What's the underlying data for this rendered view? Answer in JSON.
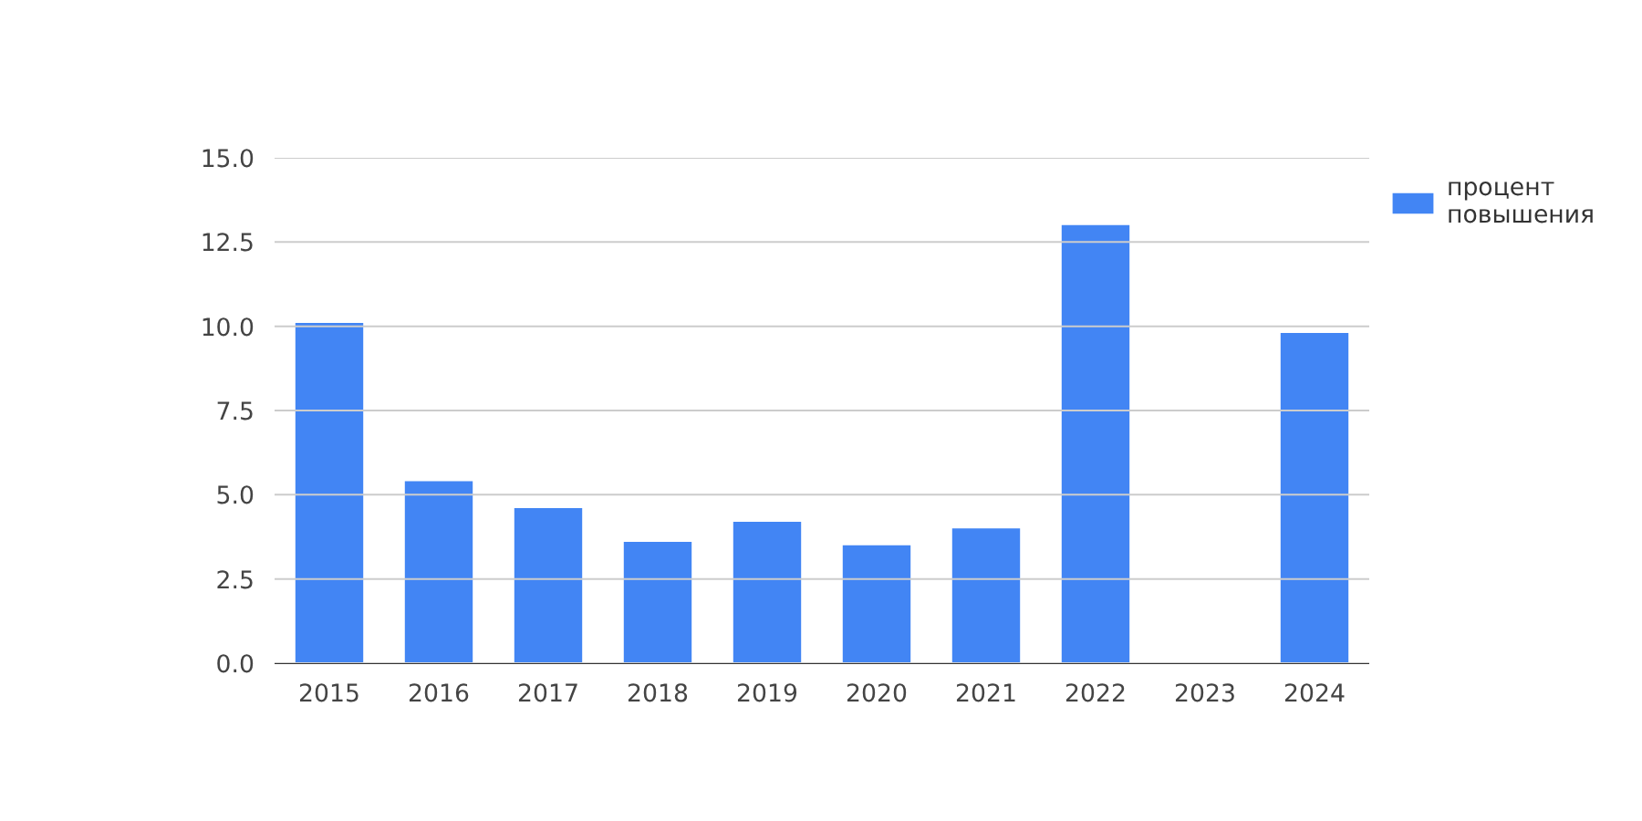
{
  "chart_data": {
    "type": "bar",
    "categories": [
      "2015",
      "2016",
      "2017",
      "2018",
      "2019",
      "2020",
      "2021",
      "2022",
      "2023",
      "2024"
    ],
    "series": [
      {
        "name": "процент повышения",
        "color": "#4285f4",
        "values": [
          10.1,
          5.4,
          4.6,
          3.6,
          4.2,
          3.5,
          4.0,
          13.0,
          null,
          9.8
        ]
      }
    ],
    "ylim": [
      0,
      15
    ],
    "yticks": [
      {
        "value": 0,
        "label": "0.0"
      },
      2.5,
      {
        "value": 5,
        "label": "5.0"
      },
      7.5,
      {
        "value": 10,
        "label": "10.0"
      },
      12.5,
      {
        "value": 15,
        "label": "15.0"
      }
    ],
    "grid": "y",
    "legend": "top right"
  }
}
